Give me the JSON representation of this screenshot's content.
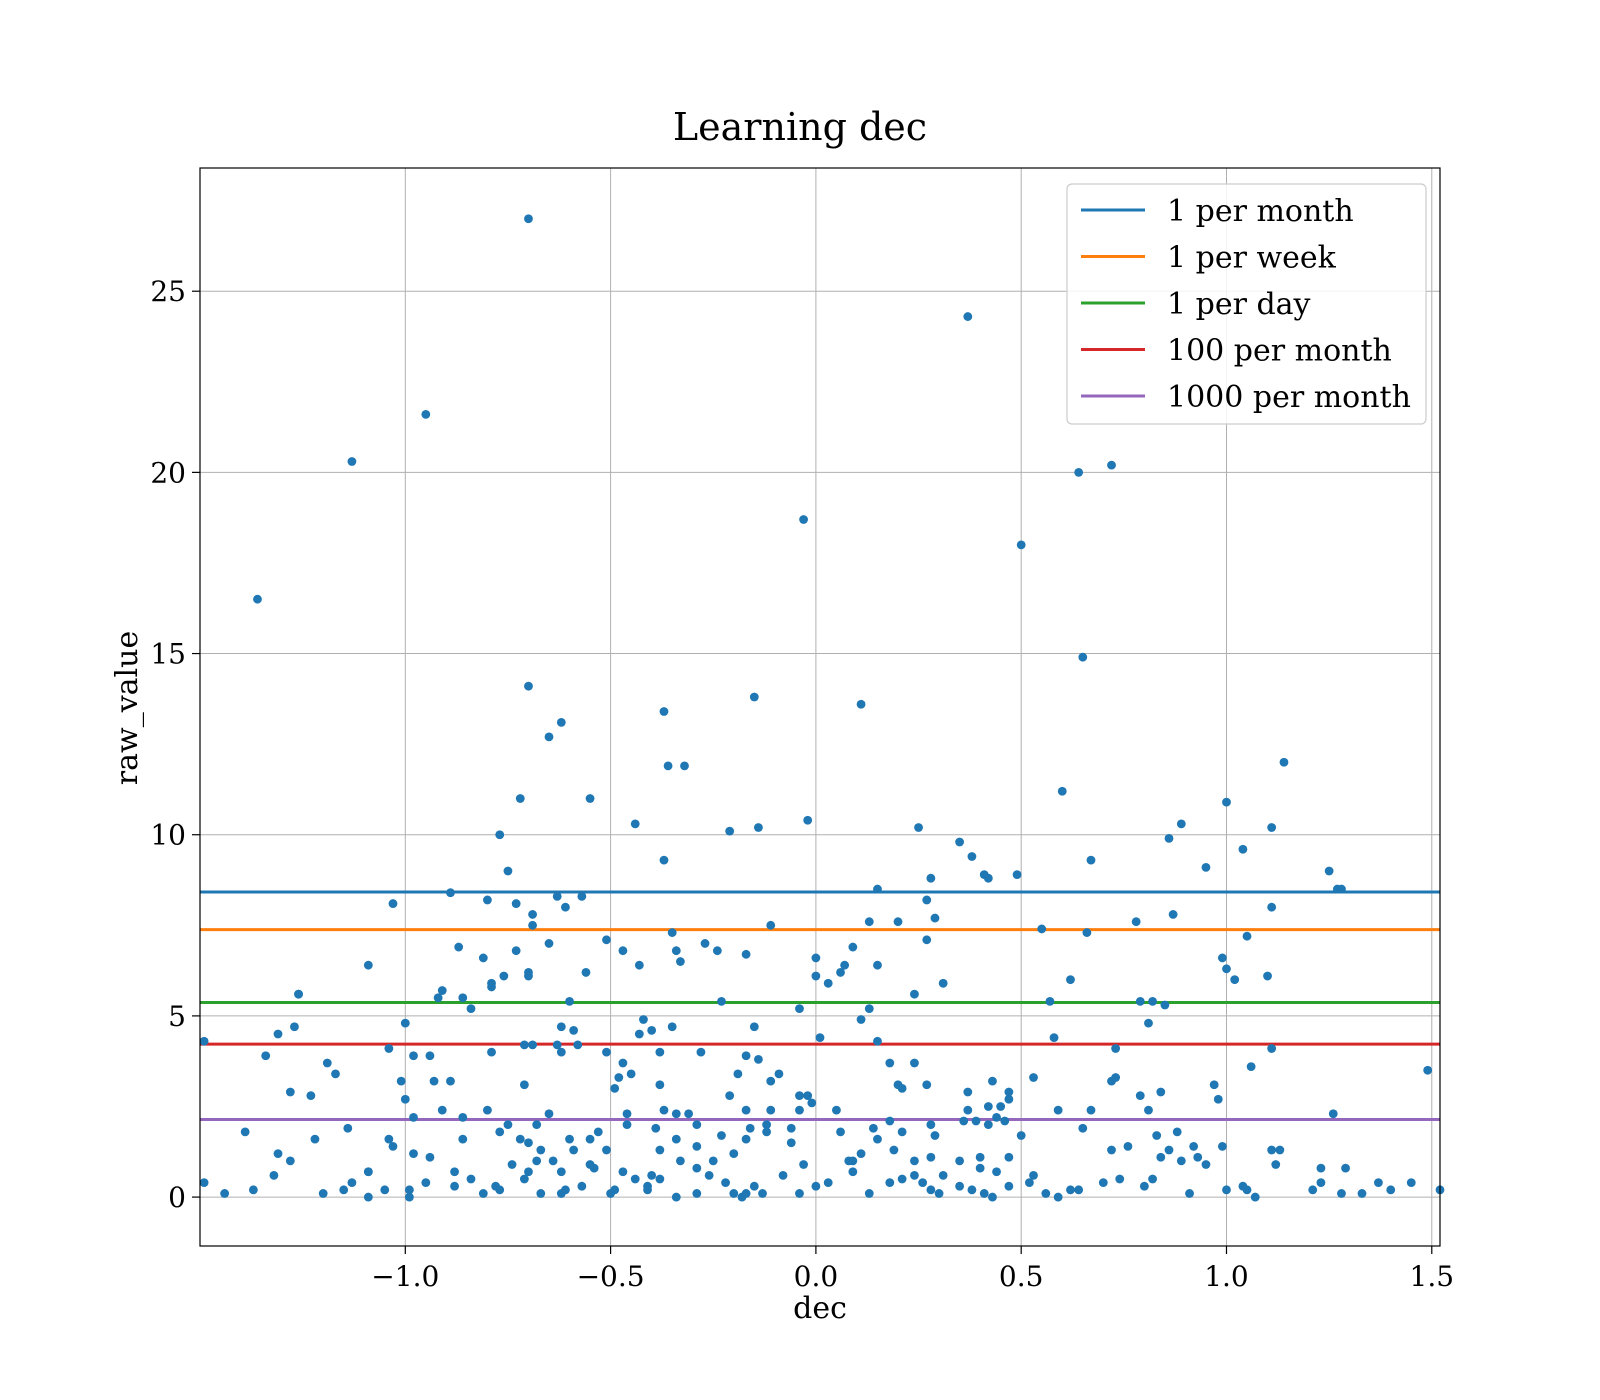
{
  "chart_data": {
    "type": "scatter",
    "title": "Learning dec",
    "xlabel": "dec",
    "ylabel": "raw_value",
    "xlim": [
      -1.5,
      1.52
    ],
    "ylim": [
      -1.35,
      28.4
    ],
    "xticks": [
      -1.0,
      -0.5,
      0.0,
      0.5,
      1.0,
      1.5
    ],
    "xtick_labels": [
      "−1.0",
      "−0.5",
      "0.0",
      "0.5",
      "1.0",
      "1.5"
    ],
    "yticks": [
      0,
      5,
      10,
      15,
      20,
      25
    ],
    "ytick_labels": [
      "0",
      "5",
      "10",
      "15",
      "20",
      "25"
    ],
    "grid": true,
    "legend_position": "top-right",
    "point_color": "#1f77b4",
    "reference_lines": [
      {
        "name": "1 per month",
        "y": 8.42,
        "color": "#1f77b4"
      },
      {
        "name": "1 per week",
        "y": 7.38,
        "color": "#ff7f0e"
      },
      {
        "name": "1 per day",
        "y": 5.37,
        "color": "#2ca02c"
      },
      {
        "name": "100 per month",
        "y": 4.22,
        "color": "#d62728"
      },
      {
        "name": "1000 per month",
        "y": 2.14,
        "color": "#9467bd"
      }
    ],
    "points": [
      [
        -0.7,
        27.0
      ],
      [
        0.37,
        24.3
      ],
      [
        -0.95,
        21.6
      ],
      [
        -1.13,
        20.3
      ],
      [
        0.64,
        20.0
      ],
      [
        0.72,
        20.2
      ],
      [
        -0.03,
        18.7
      ],
      [
        0.5,
        18.0
      ],
      [
        -1.36,
        16.5
      ],
      [
        0.65,
        14.9
      ],
      [
        -0.7,
        14.1
      ],
      [
        -0.15,
        13.8
      ],
      [
        0.11,
        13.6
      ],
      [
        -0.37,
        13.4
      ],
      [
        -0.62,
        13.1
      ],
      [
        -0.65,
        12.7
      ],
      [
        -0.36,
        11.9
      ],
      [
        -0.32,
        11.9
      ],
      [
        1.14,
        12.0
      ],
      [
        0.6,
        11.2
      ],
      [
        -0.55,
        11.0
      ],
      [
        -0.72,
        11.0
      ],
      [
        1.0,
        10.9
      ],
      [
        -0.02,
        10.4
      ],
      [
        0.89,
        10.3
      ],
      [
        -0.44,
        10.3
      ],
      [
        0.25,
        10.2
      ],
      [
        -0.21,
        10.1
      ],
      [
        -0.14,
        10.2
      ],
      [
        1.11,
        10.2
      ],
      [
        -0.77,
        10.0
      ],
      [
        0.86,
        9.9
      ],
      [
        0.35,
        9.8
      ],
      [
        1.04,
        9.6
      ],
      [
        0.38,
        9.4
      ],
      [
        0.67,
        9.3
      ],
      [
        -0.37,
        9.3
      ],
      [
        0.95,
        9.1
      ],
      [
        -0.75,
        9.0
      ],
      [
        1.25,
        9.0
      ],
      [
        0.41,
        8.9
      ],
      [
        0.42,
        8.8
      ],
      [
        0.49,
        8.9
      ],
      [
        0.28,
        8.8
      ],
      [
        1.27,
        8.5
      ],
      [
        1.28,
        8.5
      ],
      [
        0.15,
        8.5
      ],
      [
        -0.89,
        8.4
      ],
      [
        -0.63,
        8.3
      ],
      [
        -0.57,
        8.3
      ],
      [
        0.27,
        8.2
      ],
      [
        -0.8,
        8.2
      ],
      [
        -1.03,
        8.1
      ],
      [
        -0.73,
        8.1
      ],
      [
        -0.61,
        8.0
      ],
      [
        1.11,
        8.0
      ],
      [
        0.87,
        7.8
      ],
      [
        -0.69,
        7.8
      ],
      [
        0.29,
        7.7
      ],
      [
        0.2,
        7.6
      ],
      [
        0.78,
        7.6
      ],
      [
        0.13,
        7.6
      ],
      [
        -0.11,
        7.5
      ],
      [
        -0.69,
        7.5
      ],
      [
        0.55,
        7.4
      ],
      [
        -0.35,
        7.3
      ],
      [
        0.66,
        7.3
      ],
      [
        1.05,
        7.2
      ],
      [
        -0.51,
        7.1
      ],
      [
        0.27,
        7.1
      ],
      [
        -0.27,
        7.0
      ],
      [
        -0.65,
        7.0
      ],
      [
        0.09,
        6.9
      ],
      [
        -0.87,
        6.9
      ],
      [
        -0.34,
        6.8
      ],
      [
        -0.24,
        6.8
      ],
      [
        -0.73,
        6.8
      ],
      [
        -0.47,
        6.8
      ],
      [
        -0.17,
        6.7
      ],
      [
        -0.81,
        6.6
      ],
      [
        0.0,
        6.6
      ],
      [
        0.99,
        6.6
      ],
      [
        -0.33,
        6.5
      ],
      [
        0.07,
        6.4
      ],
      [
        0.15,
        6.4
      ],
      [
        -0.43,
        6.4
      ],
      [
        -1.09,
        6.4
      ],
      [
        1.0,
        6.3
      ],
      [
        -0.56,
        6.2
      ],
      [
        -0.7,
        6.2
      ],
      [
        0.06,
        6.2
      ],
      [
        -0.7,
        6.1
      ],
      [
        -0.0,
        6.1
      ],
      [
        1.1,
        6.1
      ],
      [
        -0.76,
        6.1
      ],
      [
        0.62,
        6.0
      ],
      [
        -0.79,
        5.9
      ],
      [
        0.31,
        5.9
      ],
      [
        1.02,
        6.0
      ],
      [
        0.03,
        5.9
      ],
      [
        -0.79,
        5.8
      ],
      [
        -0.91,
        5.7
      ],
      [
        -1.26,
        5.6
      ],
      [
        -1.26,
        5.6
      ],
      [
        0.24,
        5.6
      ],
      [
        -0.86,
        5.5
      ],
      [
        -0.92,
        5.5
      ],
      [
        0.57,
        5.4
      ],
      [
        -0.6,
        5.4
      ],
      [
        0.79,
        5.4
      ],
      [
        0.82,
        5.4
      ],
      [
        -0.23,
        5.4
      ],
      [
        0.85,
        5.3
      ],
      [
        0.13,
        5.2
      ],
      [
        -0.84,
        5.2
      ],
      [
        -0.04,
        5.2
      ],
      [
        0.11,
        4.9
      ],
      [
        -1.0,
        4.8
      ],
      [
        -0.42,
        4.9
      ],
      [
        0.81,
        4.8
      ],
      [
        -1.27,
        4.7
      ],
      [
        -0.62,
        4.7
      ],
      [
        -0.35,
        4.7
      ],
      [
        -0.15,
        4.7
      ],
      [
        -0.59,
        4.6
      ],
      [
        -0.4,
        4.6
      ],
      [
        -1.31,
        4.5
      ],
      [
        -0.43,
        4.5
      ],
      [
        0.58,
        4.4
      ],
      [
        0.01,
        4.4
      ],
      [
        -0.58,
        4.2
      ],
      [
        -1.49,
        4.3
      ],
      [
        0.15,
        4.3
      ],
      [
        -0.71,
        4.2
      ],
      [
        -0.69,
        4.2
      ],
      [
        -0.63,
        4.2
      ],
      [
        -1.04,
        4.1
      ],
      [
        0.73,
        4.1
      ],
      [
        1.11,
        4.1
      ],
      [
        -0.62,
        4.0
      ],
      [
        -0.79,
        4.0
      ],
      [
        -0.51,
        4.0
      ],
      [
        -0.28,
        4.0
      ],
      [
        -0.94,
        3.9
      ],
      [
        -0.98,
        3.9
      ],
      [
        -0.38,
        4.0
      ],
      [
        -1.34,
        3.9
      ],
      [
        -0.17,
        3.9
      ],
      [
        -0.14,
        3.8
      ],
      [
        -0.47,
        3.7
      ],
      [
        0.18,
        3.7
      ],
      [
        0.24,
        3.7
      ],
      [
        1.06,
        3.6
      ],
      [
        -1.19,
        3.7
      ],
      [
        1.49,
        3.5
      ],
      [
        -1.17,
        3.4
      ],
      [
        -0.45,
        3.4
      ],
      [
        -0.19,
        3.4
      ],
      [
        -0.09,
        3.4
      ],
      [
        0.53,
        3.3
      ],
      [
        -0.48,
        3.3
      ],
      [
        -1.01,
        3.2
      ],
      [
        -0.93,
        3.2
      ],
      [
        -0.89,
        3.2
      ],
      [
        0.43,
        3.2
      ],
      [
        0.72,
        3.2
      ],
      [
        0.73,
        3.3
      ],
      [
        -0.11,
        3.2
      ],
      [
        0.2,
        3.1
      ],
      [
        0.27,
        3.1
      ],
      [
        0.97,
        3.1
      ],
      [
        -0.71,
        3.1
      ],
      [
        -0.49,
        3.0
      ],
      [
        -0.38,
        3.1
      ],
      [
        0.21,
        3.0
      ],
      [
        0.37,
        2.9
      ],
      [
        0.47,
        2.9
      ],
      [
        0.84,
        2.9
      ],
      [
        -1.28,
        2.9
      ],
      [
        -0.04,
        2.8
      ],
      [
        0.79,
        2.8
      ],
      [
        -1.23,
        2.8
      ],
      [
        -0.02,
        2.8
      ],
      [
        -0.21,
        2.8
      ],
      [
        0.47,
        2.7
      ],
      [
        0.98,
        2.7
      ],
      [
        -1.0,
        2.7
      ],
      [
        0.42,
        2.5
      ],
      [
        0.45,
        2.5
      ],
      [
        -0.01,
        2.6
      ],
      [
        0.67,
        2.4
      ],
      [
        -0.37,
        2.4
      ],
      [
        -0.34,
        2.3
      ],
      [
        -0.11,
        2.4
      ],
      [
        -0.04,
        2.4
      ],
      [
        0.05,
        2.4
      ],
      [
        0.37,
        2.4
      ],
      [
        0.59,
        2.4
      ],
      [
        -0.8,
        2.4
      ],
      [
        -0.91,
        2.4
      ],
      [
        0.81,
        2.4
      ],
      [
        -0.17,
        2.4
      ],
      [
        -0.65,
        2.3
      ],
      [
        -0.46,
        2.3
      ],
      [
        -0.31,
        2.3
      ],
      [
        1.26,
        2.3
      ],
      [
        -0.86,
        2.2
      ],
      [
        -0.98,
        2.2
      ],
      [
        0.18,
        2.1
      ],
      [
        0.36,
        2.1
      ],
      [
        0.44,
        2.2
      ],
      [
        0.28,
        2.0
      ],
      [
        0.46,
        2.1
      ],
      [
        -0.29,
        2.0
      ],
      [
        -0.12,
        2.0
      ],
      [
        0.39,
        2.1
      ],
      [
        0.42,
        2.0
      ],
      [
        -0.46,
        2.0
      ],
      [
        -0.68,
        2.0
      ],
      [
        -0.75,
        2.0
      ],
      [
        -0.16,
        1.9
      ],
      [
        -0.12,
        1.8
      ],
      [
        0.14,
        1.9
      ],
      [
        0.21,
        1.8
      ],
      [
        0.65,
        1.9
      ],
      [
        -0.53,
        1.8
      ],
      [
        -0.39,
        1.9
      ],
      [
        -0.77,
        1.8
      ],
      [
        -1.39,
        1.8
      ],
      [
        -1.14,
        1.9
      ],
      [
        -0.06,
        1.9
      ],
      [
        0.06,
        1.8
      ],
      [
        0.88,
        1.8
      ],
      [
        -0.23,
        1.7
      ],
      [
        0.29,
        1.7
      ],
      [
        0.5,
        1.7
      ],
      [
        -0.72,
        1.6
      ],
      [
        0.83,
        1.7
      ],
      [
        -1.04,
        1.6
      ],
      [
        -0.86,
        1.6
      ],
      [
        -0.55,
        1.6
      ],
      [
        -0.34,
        1.6
      ],
      [
        -1.22,
        1.6
      ],
      [
        0.15,
        1.6
      ],
      [
        -0.6,
        1.6
      ],
      [
        -0.17,
        1.6
      ],
      [
        -0.7,
        1.5
      ],
      [
        -1.03,
        1.4
      ],
      [
        -0.06,
        1.5
      ],
      [
        0.76,
        1.4
      ],
      [
        -0.29,
        1.4
      ],
      [
        0.92,
        1.4
      ],
      [
        -0.51,
        1.3
      ],
      [
        0.19,
        1.3
      ],
      [
        0.72,
        1.3
      ],
      [
        0.86,
        1.3
      ],
      [
        0.99,
        1.4
      ],
      [
        -0.67,
        1.3
      ],
      [
        -0.59,
        1.3
      ],
      [
        1.11,
        1.3
      ],
      [
        1.13,
        1.3
      ],
      [
        -1.31,
        1.2
      ],
      [
        -0.38,
        1.3
      ],
      [
        -0.2,
        1.2
      ],
      [
        0.11,
        1.2
      ],
      [
        -0.98,
        1.2
      ],
      [
        0.84,
        1.1
      ],
      [
        0.93,
        1.1
      ],
      [
        0.28,
        1.1
      ],
      [
        0.4,
        1.1
      ],
      [
        -0.94,
        1.1
      ],
      [
        0.35,
        1.0
      ],
      [
        0.47,
        1.1
      ],
      [
        -1.28,
        1.0
      ],
      [
        -0.33,
        1.0
      ],
      [
        -0.25,
        1.0
      ],
      [
        0.08,
        1.0
      ],
      [
        0.09,
        1.0
      ],
      [
        0.89,
        1.0
      ],
      [
        -0.68,
        1.0
      ],
      [
        -0.64,
        1.0
      ],
      [
        -0.74,
        0.9
      ],
      [
        -0.29,
        0.8
      ],
      [
        -0.03,
        0.9
      ],
      [
        1.12,
        0.9
      ],
      [
        1.23,
        0.8
      ],
      [
        1.29,
        0.8
      ],
      [
        -1.09,
        0.7
      ],
      [
        -1.09,
        0.7
      ],
      [
        0.44,
        0.7
      ],
      [
        -0.62,
        0.7
      ],
      [
        -0.54,
        0.8
      ],
      [
        -0.47,
        0.7
      ],
      [
        0.24,
        0.6
      ],
      [
        0.53,
        0.6
      ],
      [
        -0.84,
        0.5
      ],
      [
        -1.32,
        0.6
      ],
      [
        0.31,
        0.6
      ],
      [
        -0.4,
        0.6
      ],
      [
        0.82,
        0.5
      ],
      [
        -0.95,
        0.4
      ],
      [
        -0.71,
        0.5
      ],
      [
        -0.38,
        0.5
      ],
      [
        -0.22,
        0.4
      ],
      [
        0.52,
        0.4
      ],
      [
        1.23,
        0.4
      ],
      [
        -1.13,
        0.4
      ],
      [
        -0.78,
        0.3
      ],
      [
        0.21,
        0.5
      ],
      [
        0.03,
        0.4
      ],
      [
        1.37,
        0.4
      ],
      [
        1.45,
        0.4
      ],
      [
        -1.49,
        0.4
      ],
      [
        0.47,
        0.3
      ],
      [
        -0.88,
        0.3
      ],
      [
        1.04,
        0.3
      ],
      [
        -1.37,
        0.2
      ],
      [
        -0.41,
        0.3
      ],
      [
        1.0,
        0.2
      ],
      [
        1.21,
        0.2
      ],
      [
        -0.99,
        0.2
      ],
      [
        -0.77,
        0.2
      ],
      [
        -0.49,
        0.2
      ],
      [
        0.28,
        0.2
      ],
      [
        0.62,
        0.2
      ],
      [
        0.64,
        0.2
      ],
      [
        -1.2,
        0.1
      ],
      [
        -1.44,
        0.1
      ],
      [
        0.38,
        0.2
      ],
      [
        -1.09,
        0.0
      ],
      [
        -0.99,
        0.0
      ],
      [
        -0.62,
        0.1
      ],
      [
        -0.5,
        0.1
      ],
      [
        -0.17,
        0.1
      ],
      [
        -0.13,
        0.1
      ],
      [
        0.3,
        0.1
      ],
      [
        0.41,
        0.1
      ],
      [
        0.59,
        0.0
      ],
      [
        0.91,
        0.1
      ],
      [
        1.07,
        0.0
      ],
      [
        1.28,
        0.1
      ],
      [
        1.33,
        0.1
      ],
      [
        1.52,
        0.2
      ],
      [
        -0.29,
        0.1
      ],
      [
        -0.2,
        0.1
      ],
      [
        0.13,
        0.1
      ],
      [
        -0.04,
        0.1
      ],
      [
        -0.67,
        0.1
      ],
      [
        0.74,
        0.5
      ],
      [
        0.8,
        0.3
      ],
      [
        -0.57,
        0.3
      ],
      [
        -0.81,
        0.1
      ],
      [
        -0.61,
        0.2
      ],
      [
        -0.15,
        0.3
      ],
      [
        0.18,
        0.4
      ],
      [
        0.35,
        0.3
      ],
      [
        0.7,
        0.4
      ],
      [
        1.4,
        0.2
      ],
      [
        -1.05,
        0.2
      ],
      [
        -1.15,
        0.2
      ],
      [
        -0.88,
        0.7
      ],
      [
        -0.44,
        0.5
      ],
      [
        -0.26,
        0.6
      ],
      [
        -0.08,
        0.6
      ],
      [
        0.09,
        0.7
      ],
      [
        0.26,
        0.4
      ],
      [
        0.56,
        0.1
      ],
      [
        0.95,
        0.9
      ],
      [
        1.05,
        0.2
      ],
      [
        -0.34,
        0.0
      ],
      [
        0.0,
        0.3
      ],
      [
        -0.18,
        0.0
      ],
      [
        0.43,
        0.0
      ],
      [
        -0.41,
        0.2
      ],
      [
        -0.55,
        0.9
      ],
      [
        -0.7,
        0.7
      ],
      [
        0.24,
        1.0
      ],
      [
        0.4,
        0.8
      ]
    ]
  }
}
